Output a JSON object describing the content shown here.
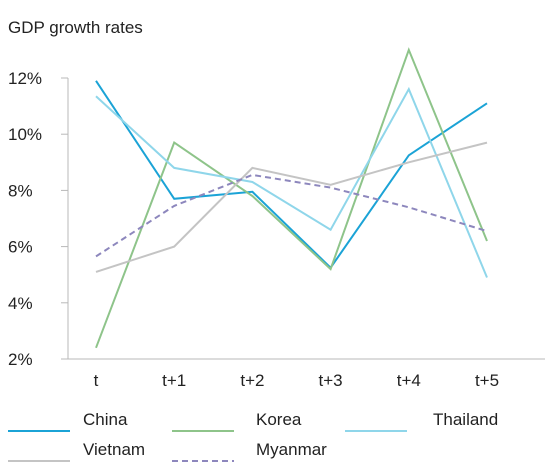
{
  "chart_data": {
    "type": "line",
    "title": "GDP growth rates",
    "xlabel": "",
    "ylabel": "",
    "categories": [
      "t",
      "t+1",
      "t+2",
      "t+3",
      "t+4",
      "t+5"
    ],
    "ylim": [
      2,
      12
    ],
    "yticks": [
      2,
      4,
      6,
      8,
      10,
      12
    ],
    "ytick_suffix": "%",
    "grid": false,
    "legend_position": "bottom",
    "series": [
      {
        "name": "China",
        "color": "#1ba3d6",
        "dash": "solid",
        "values": [
          11.9,
          7.7,
          7.95,
          5.25,
          9.25,
          11.1
        ]
      },
      {
        "name": "Korea",
        "color": "#8ec48a",
        "dash": "solid",
        "values": [
          2.4,
          9.7,
          7.8,
          5.2,
          13.0,
          6.2
        ]
      },
      {
        "name": "Thailand",
        "color": "#8fd6ea",
        "dash": "solid",
        "values": [
          11.35,
          8.8,
          8.3,
          6.6,
          11.6,
          4.9
        ]
      },
      {
        "name": "Vietnam",
        "color": "#c4c4c4",
        "dash": "solid",
        "values": [
          5.1,
          6.0,
          8.8,
          8.2,
          9.0,
          9.7
        ]
      },
      {
        "name": "Myanmar",
        "color": "#8d87bd",
        "dash": "dashed",
        "values": [
          5.65,
          7.45,
          8.55,
          8.1,
          7.4,
          6.55
        ]
      }
    ]
  }
}
